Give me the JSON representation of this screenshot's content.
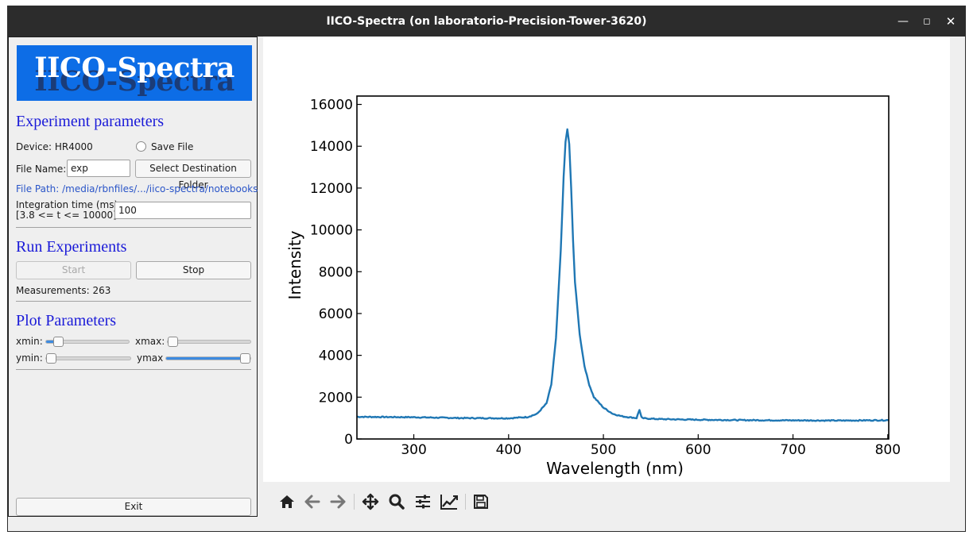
{
  "window": {
    "title": "IICO-Spectra (on laboratorio-Precision-Tower-3620)",
    "controls": [
      "minimize-icon",
      "maximize-icon",
      "close-icon"
    ]
  },
  "logo": {
    "text": "IICO-Spectra"
  },
  "experiment": {
    "heading": "Experiment parameters",
    "device": "Device: HR4000",
    "save_file_label": "Save File",
    "save_file_checked": false,
    "file_name_label": "File Name:",
    "file_name_value": "exp",
    "select_folder_label": "Select Destination Folder",
    "file_path": "File Path: /media/rbnfiles/.../iico-spectra/notebooks",
    "integration_label_1": "Integration time (ms):",
    "integration_label_2": "[3.8 <= t <= 10000]",
    "integration_value": "100"
  },
  "run": {
    "heading": "Run Experiments",
    "start_label": "Start",
    "stop_label": "Stop",
    "measurements": "Measurements: 263"
  },
  "plot_params": {
    "heading": "Plot Parameters",
    "xmin_label": "xmin:",
    "xmax_label": "xmax:",
    "ymin_label": "ymin:",
    "ymax_label": "ymax",
    "xmin_level": 0.1,
    "xmax_level": 0.0,
    "ymin_level": 0.0,
    "ymax_level": 1.0
  },
  "exit_label": "Exit",
  "toolbar": {
    "icons": [
      "home-icon",
      "back-arrow-icon",
      "forward-arrow-icon",
      "pan-icon",
      "zoom-icon",
      "configure-subplots-icon",
      "edit-axis-icon",
      "save-icon"
    ]
  },
  "chart_data": {
    "type": "line",
    "xlabel": "Wavelength (nm)",
    "ylabel": "Intensity",
    "xlim": [
      240,
      801
    ],
    "ylim": [
      0,
      16400
    ],
    "xticks": [
      300,
      400,
      500,
      600,
      700,
      800
    ],
    "yticks": [
      0,
      2000,
      4000,
      6000,
      8000,
      10000,
      12000,
      14000,
      16000
    ],
    "line_color": "#1f77b4",
    "series": [
      {
        "x": [
          240,
          300,
          350,
          400,
          420,
          430,
          440,
          445,
          450,
          455,
          458,
          460,
          462,
          464,
          466,
          468,
          470,
          475,
          480,
          485,
          490,
          500,
          510,
          520,
          535,
          538,
          540,
          541,
          545,
          560,
          600,
          650,
          700,
          750,
          801
        ],
        "y": [
          1060,
          1040,
          1000,
          990,
          1050,
          1200,
          1700,
          2600,
          4800,
          9000,
          12500,
          14200,
          14800,
          14100,
          12000,
          9500,
          7500,
          5000,
          3500,
          2600,
          2000,
          1500,
          1200,
          1080,
          1000,
          1400,
          1050,
          1000,
          980,
          950,
          920,
          900,
          890,
          880,
          900
        ]
      }
    ]
  }
}
